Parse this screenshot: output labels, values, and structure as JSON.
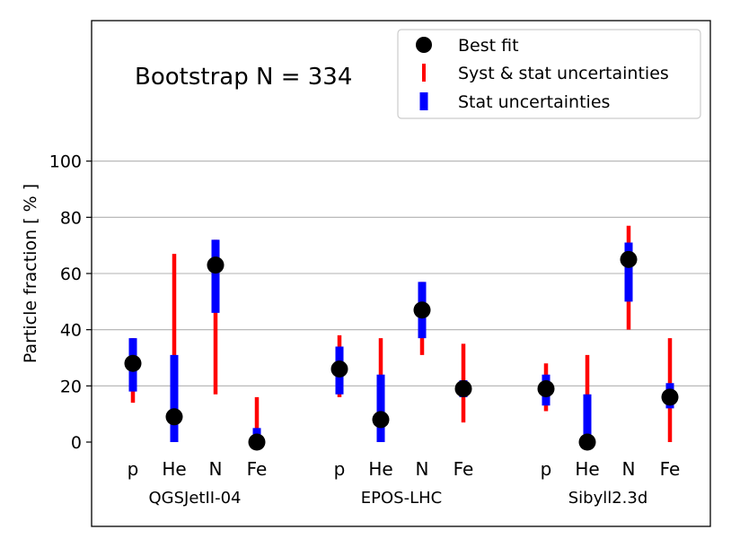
{
  "chart_data": {
    "type": "errorbar",
    "annotation": "Bootstrap N = 334",
    "ylabel": "Particle fraction [ % ]",
    "ylim": [
      -30,
      150
    ],
    "yticks": [
      0,
      20,
      40,
      60,
      80,
      100
    ],
    "grid": true,
    "legend": {
      "position": "top-right",
      "entries": [
        {
          "label": "Best fit",
          "marker": "circle",
          "color": "#000000"
        },
        {
          "label": "Syst & stat uncertainties",
          "marker": "thin-bar",
          "color": "#ff0000"
        },
        {
          "label": "Stat uncertainties",
          "marker": "thick-bar",
          "color": "#0000ff"
        }
      ]
    },
    "groups": [
      {
        "model": "QGSJetII-04",
        "points": [
          {
            "particle": "p",
            "best": 28,
            "syst": [
              14,
              37
            ],
            "stat": [
              18,
              37
            ]
          },
          {
            "particle": "He",
            "best": 9,
            "syst": [
              0,
              67
            ],
            "stat": [
              0,
              31
            ]
          },
          {
            "particle": "N",
            "best": 63,
            "syst": [
              17,
              72
            ],
            "stat": [
              46,
              72
            ]
          },
          {
            "particle": "Fe",
            "best": 0,
            "syst": [
              0,
              16
            ],
            "stat": [
              0,
              5
            ]
          }
        ]
      },
      {
        "model": "EPOS-LHC",
        "points": [
          {
            "particle": "p",
            "best": 26,
            "syst": [
              16,
              38
            ],
            "stat": [
              17,
              34
            ]
          },
          {
            "particle": "He",
            "best": 8,
            "syst": [
              0,
              37
            ],
            "stat": [
              0,
              24
            ]
          },
          {
            "particle": "N",
            "best": 47,
            "syst": [
              31,
              57
            ],
            "stat": [
              37,
              57
            ]
          },
          {
            "particle": "Fe",
            "best": 19,
            "syst": [
              7,
              35
            ],
            "stat": [
              16,
              22
            ]
          }
        ]
      },
      {
        "model": "Sibyll2.3d",
        "points": [
          {
            "particle": "p",
            "best": 19,
            "syst": [
              11,
              28
            ],
            "stat": [
              13,
              24
            ]
          },
          {
            "particle": "He",
            "best": 0,
            "syst": [
              0,
              31
            ],
            "stat": [
              0,
              17
            ]
          },
          {
            "particle": "N",
            "best": 65,
            "syst": [
              40,
              77
            ],
            "stat": [
              50,
              71
            ]
          },
          {
            "particle": "Fe",
            "best": 16,
            "syst": [
              0,
              37
            ],
            "stat": [
              12,
              21
            ]
          }
        ]
      }
    ],
    "colors": {
      "syst": "#ff0000",
      "stat": "#0000ff",
      "best": "#000000",
      "grid": "#b0b0b0"
    }
  }
}
